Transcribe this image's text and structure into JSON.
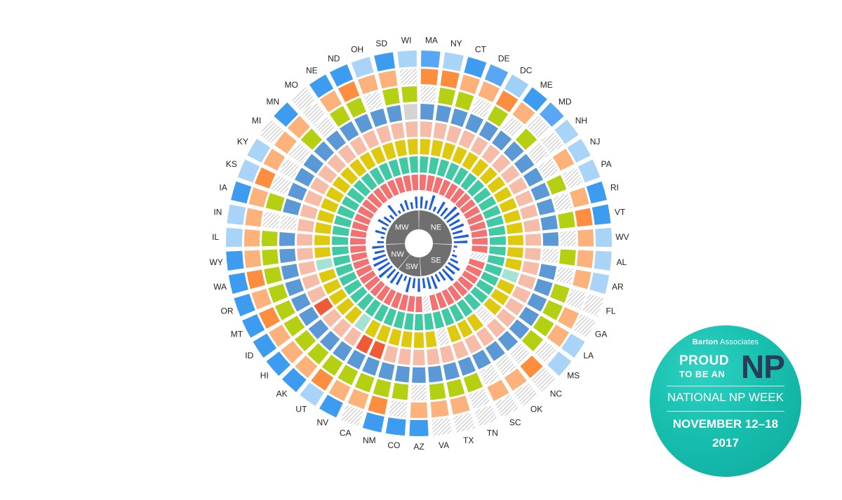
{
  "chart_data": {
    "type": "radial-heatmap",
    "title": "",
    "regions": [
      {
        "code": "NE",
        "label": "NE"
      },
      {
        "code": "SE",
        "label": "SE"
      },
      {
        "code": "SW",
        "label": "SW"
      },
      {
        "code": "NW",
        "label": "NW"
      },
      {
        "code": "MW",
        "label": "MW"
      }
    ],
    "states": [
      {
        "code": "MA",
        "region": "NE",
        "levels": [
          7,
          2,
          0,
          1,
          4,
          2,
          4,
          1
        ]
      },
      {
        "code": "NY",
        "region": "NE",
        "levels": [
          5,
          2,
          4,
          1,
          6,
          3,
          4,
          1
        ]
      },
      {
        "code": "CT",
        "region": "NE",
        "levels": [
          4,
          3,
          4,
          1,
          6,
          3,
          4,
          1
        ]
      },
      {
        "code": "DE",
        "region": "NE",
        "levels": [
          3,
          3,
          0,
          1,
          6,
          3,
          4,
          1
        ]
      },
      {
        "code": "DC",
        "region": "NE",
        "levels": [
          2,
          2,
          4,
          1,
          6,
          3,
          4,
          1
        ]
      },
      {
        "code": "ME",
        "region": "NE",
        "levels": [
          4,
          3,
          0,
          2,
          5,
          3,
          4,
          1
        ]
      },
      {
        "code": "MD",
        "region": "NE",
        "levels": [
          7,
          0,
          4,
          1,
          6,
          3,
          4,
          1
        ]
      },
      {
        "code": "NH",
        "region": "NE",
        "levels": [
          5,
          0,
          0,
          1,
          6,
          4,
          4,
          1
        ]
      },
      {
        "code": "NJ",
        "region": "NE",
        "levels": [
          5,
          3,
          0,
          1,
          6,
          3,
          4,
          1
        ]
      },
      {
        "code": "PA",
        "region": "NE",
        "levels": [
          5,
          0,
          4,
          1,
          6,
          3,
          4,
          1
        ]
      },
      {
        "code": "RI",
        "region": "NE",
        "levels": [
          4,
          3,
          0,
          2,
          6,
          3,
          4,
          1
        ]
      },
      {
        "code": "VT",
        "region": "NE",
        "levels": [
          4,
          2,
          4,
          1,
          6,
          3,
          4,
          1
        ]
      },
      {
        "code": "WV",
        "region": "NE",
        "levels": [
          5,
          3,
          0,
          1,
          6,
          3,
          4,
          1
        ]
      },
      {
        "code": "AL",
        "region": "SE",
        "levels": [
          5,
          3,
          4,
          0,
          6,
          3,
          4,
          1
        ]
      },
      {
        "code": "AR",
        "region": "SE",
        "levels": [
          5,
          3,
          0,
          1,
          6,
          4,
          4,
          0
        ]
      },
      {
        "code": "FL",
        "region": "SE",
        "levels": [
          0,
          0,
          4,
          1,
          6,
          5,
          4,
          1
        ]
      },
      {
        "code": "GA",
        "region": "SE",
        "levels": [
          0,
          3,
          4,
          1,
          6,
          3,
          4,
          1
        ]
      },
      {
        "code": "LA",
        "region": "SE",
        "levels": [
          5,
          3,
          4,
          1,
          6,
          3,
          4,
          1
        ]
      },
      {
        "code": "MS",
        "region": "SE",
        "levels": [
          5,
          0,
          4,
          1,
          6,
          3,
          4,
          1
        ]
      },
      {
        "code": "NC",
        "region": "SE",
        "levels": [
          0,
          2,
          0,
          1,
          6,
          0,
          4,
          1
        ]
      },
      {
        "code": "OK",
        "region": "SE",
        "levels": [
          0,
          3,
          0,
          1,
          6,
          3,
          4,
          1
        ]
      },
      {
        "code": "SC",
        "region": "SE",
        "levels": [
          0,
          3,
          0,
          1,
          6,
          3,
          4,
          1
        ]
      },
      {
        "code": "TN",
        "region": "SE",
        "levels": [
          0,
          0,
          4,
          1,
          6,
          3,
          4,
          1
        ]
      },
      {
        "code": "TX",
        "region": "SE",
        "levels": [
          0,
          3,
          4,
          1,
          6,
          0,
          4,
          1
        ]
      },
      {
        "code": "VA",
        "region": "SE",
        "levels": [
          0,
          3,
          4,
          1,
          6,
          3,
          4,
          0
        ]
      },
      {
        "code": "AZ",
        "region": "SW",
        "levels": [
          4,
          3,
          0,
          1,
          6,
          3,
          4,
          1
        ]
      },
      {
        "code": "CO",
        "region": "SW",
        "levels": [
          4,
          0,
          2,
          1,
          6,
          3,
          4,
          1
        ]
      },
      {
        "code": "NM",
        "region": "SW",
        "levels": [
          4,
          2,
          4,
          1,
          6,
          3,
          4,
          1
        ]
      },
      {
        "code": "CA",
        "region": "SW",
        "levels": [
          0,
          3,
          2,
          1,
          7,
          3,
          4,
          1
        ]
      },
      {
        "code": "NV",
        "region": "SW",
        "levels": [
          4,
          3,
          4,
          1,
          7,
          3,
          4,
          1
        ]
      },
      {
        "code": "UT",
        "region": "SW",
        "levels": [
          5,
          2,
          2,
          1,
          6,
          5,
          4,
          1
        ]
      },
      {
        "code": "AK",
        "region": "NW",
        "levels": [
          4,
          3,
          4,
          1,
          6,
          3,
          4,
          1
        ]
      },
      {
        "code": "HI",
        "region": "NW",
        "levels": [
          4,
          3,
          2,
          1,
          6,
          3,
          4,
          1
        ]
      },
      {
        "code": "ID",
        "region": "NW",
        "levels": [
          4,
          3,
          2,
          1,
          7,
          3,
          4,
          1
        ]
      },
      {
        "code": "MT",
        "region": "NW",
        "levels": [
          4,
          2,
          2,
          1,
          6,
          3,
          4,
          1
        ]
      },
      {
        "code": "OR",
        "region": "NW",
        "levels": [
          4,
          3,
          2,
          1,
          6,
          3,
          4,
          1
        ]
      },
      {
        "code": "WA",
        "region": "NW",
        "levels": [
          4,
          2,
          2,
          1,
          6,
          5,
          4,
          1
        ]
      },
      {
        "code": "WY",
        "region": "NW",
        "levels": [
          4,
          3,
          2,
          1,
          6,
          3,
          4,
          1
        ]
      },
      {
        "code": "IL",
        "region": "MW",
        "levels": [
          5,
          3,
          4,
          1,
          6,
          3,
          4,
          1
        ]
      },
      {
        "code": "IN",
        "region": "MW",
        "levels": [
          5,
          3,
          0,
          0,
          6,
          3,
          4,
          1
        ]
      },
      {
        "code": "IA",
        "region": "MW",
        "levels": [
          4,
          3,
          2,
          1,
          6,
          3,
          4,
          1
        ]
      },
      {
        "code": "KS",
        "region": "MW",
        "levels": [
          5,
          2,
          0,
          1,
          6,
          3,
          4,
          1
        ]
      },
      {
        "code": "KY",
        "region": "MW",
        "levels": [
          5,
          3,
          0,
          1,
          6,
          3,
          4,
          1
        ]
      },
      {
        "code": "MI",
        "region": "MW",
        "levels": [
          0,
          3,
          0,
          1,
          6,
          3,
          4,
          1
        ]
      },
      {
        "code": "MN",
        "region": "MW",
        "levels": [
          4,
          3,
          2,
          1,
          6,
          3,
          4,
          1
        ]
      },
      {
        "code": "MO",
        "region": "MW",
        "levels": [
          0,
          0,
          0,
          1,
          6,
          3,
          4,
          1
        ]
      },
      {
        "code": "NE",
        "region": "MW",
        "levels": [
          4,
          3,
          2,
          1,
          6,
          3,
          4,
          1
        ]
      },
      {
        "code": "ND",
        "region": "MW",
        "levels": [
          4,
          2,
          2,
          1,
          6,
          3,
          4,
          1
        ]
      },
      {
        "code": "OH",
        "region": "MW",
        "levels": [
          5,
          3,
          0,
          1,
          6,
          3,
          4,
          1
        ]
      },
      {
        "code": "SD",
        "region": "MW",
        "levels": [
          4,
          3,
          2,
          1,
          6,
          3,
          4,
          1
        ]
      },
      {
        "code": "WI",
        "region": "MW",
        "levels": [
          5,
          0,
          2,
          7,
          6,
          3,
          4,
          1
        ]
      }
    ],
    "ring_palettes": [
      [
        "hatch",
        "#5aa6f5",
        "#9fd0f7",
        "#5aa6f5",
        "#3d9bf0",
        "#a9d3f7",
        "#3d9bf0",
        "#5aa6f5"
      ],
      [
        "hatch",
        "#fda566",
        "#fd8e3f",
        "#fdb27c",
        "#fda566",
        "#fdb27c",
        "#fda566",
        "#fda566"
      ],
      [
        "hatch",
        "#d4d4d4",
        "#b5cf12",
        "#b5cf12",
        "#b5cf12",
        "#b5cf12",
        "#b5cf12",
        "#b5cf12"
      ],
      [
        "hatch",
        "#5b99d6",
        "#5b99d6",
        "#5b99d6",
        "#5b99d6",
        "#5b99d6",
        "#5b99d6",
        "#d4d4d4"
      ],
      [
        "hatch",
        "#f7bca8",
        "#f7bca8",
        "#f7bca8",
        "#f7bca8",
        "#f7bca8",
        "#f7bca8",
        "#ef5a37"
      ],
      [
        "hatch",
        "#dfc90f",
        "#dfc90f",
        "#dfc90f",
        "#dfc90f",
        "#a4e3d4",
        "#dfc90f",
        "#ef5a37"
      ],
      [
        "hatch",
        "#40c9a2",
        "#40c9a2",
        "#40c9a2",
        "#40c9a2",
        "#40c9a2",
        "#40c9a2",
        "#40c9a2"
      ],
      [
        "hatch",
        "#f37171",
        "#f37171",
        "#f37171",
        "#f37171",
        "#f37171",
        "#f37171",
        "#f37171"
      ]
    ],
    "inner_bar_color": "#1e5ed8",
    "inner_bar_values": [
      0.7,
      0.5,
      0.9,
      0.3,
      0.8,
      0.6,
      1.0,
      0.9,
      0.7,
      0.8,
      0.6,
      0.9,
      0.8,
      0.2,
      0.1,
      0.3,
      0.5,
      0.8,
      0.7,
      0.9,
      0.6,
      0.5,
      0.8,
      0.7,
      0.6,
      0.8,
      0.6,
      0.9,
      0.3,
      0.7,
      0.8,
      0.7,
      1.0,
      0.8,
      0.9,
      0.8,
      0.6,
      0.7,
      0.4,
      0.2,
      0.6,
      0.3,
      0.7,
      0.5,
      0.3,
      0.8,
      0.2,
      0.5,
      0.6,
      0.4,
      0.7
    ]
  },
  "badge": {
    "brand_bold": "Barton",
    "brand_regular": " Associates",
    "line_proud": "PROUD",
    "line_tobean": "TO BE AN",
    "line_np": "NP",
    "line_week": "NATIONAL NP WEEK",
    "line_dates": "NOVEMBER 12–18",
    "line_year": "2017"
  },
  "colors": {
    "region_fill": "#6f6f6f",
    "hatch_stroke": "#9a9a9a",
    "hatch_bg": "#ffffff"
  }
}
